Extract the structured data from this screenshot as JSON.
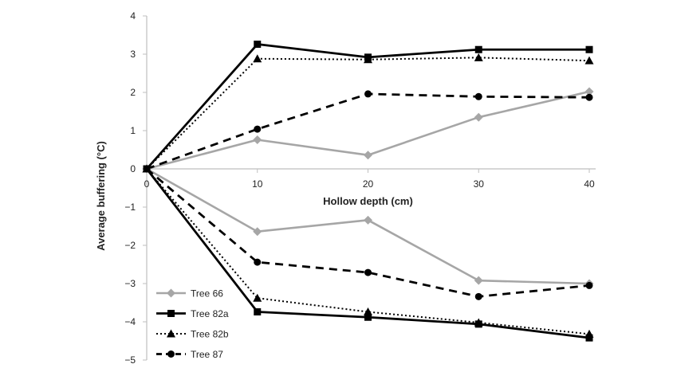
{
  "chart_data": {
    "type": "line",
    "title": "",
    "xlabel": "Hollow depth (cm)",
    "ylabel": "Average buffering (°C)",
    "x": [
      0,
      10,
      20,
      30,
      40
    ],
    "x_tick_labels": [
      "0",
      "10",
      "20",
      "30",
      "40"
    ],
    "ylim": [
      -5,
      4
    ],
    "y_ticks": [
      4,
      3,
      2,
      1,
      0,
      -1,
      -2,
      -3,
      -4,
      -5
    ],
    "y_tick_labels": [
      "4",
      "3",
      "2",
      "1",
      "0",
      "−1",
      "−2",
      "−3",
      "−4",
      "−5"
    ],
    "grid": false,
    "legend_position": "bottom-left",
    "series": [
      {
        "name": "Tree 66",
        "style": "solid",
        "marker": "diamond",
        "color": "#a6a6a6",
        "values": [
          0,
          0.76,
          0.36,
          1.35,
          2.02
        ]
      },
      {
        "name": "Tree 82a",
        "style": "solid",
        "marker": "square",
        "color": "#000000",
        "values": [
          0,
          3.26,
          2.92,
          3.12,
          3.12
        ]
      },
      {
        "name": "Tree 82b",
        "style": "dotted",
        "marker": "triangle",
        "color": "#000000",
        "values": [
          0,
          2.88,
          2.86,
          2.91,
          2.83
        ]
      },
      {
        "name": "Tree 87",
        "style": "dashed",
        "marker": "circle",
        "color": "#000000",
        "values": [
          0,
          1.04,
          1.96,
          1.89,
          1.87
        ]
      },
      {
        "name": "Tree 66",
        "style": "solid",
        "marker": "diamond",
        "color": "#a6a6a6",
        "values": [
          0,
          -1.64,
          -1.34,
          -2.92,
          -3.0
        ]
      },
      {
        "name": "Tree 82a",
        "style": "solid",
        "marker": "square",
        "color": "#000000",
        "values": [
          0,
          -3.74,
          -3.88,
          -4.06,
          -4.42
        ]
      },
      {
        "name": "Tree 82b",
        "style": "dotted",
        "marker": "triangle",
        "color": "#000000",
        "values": [
          0,
          -3.38,
          -3.74,
          -4.02,
          -4.32
        ]
      },
      {
        "name": "Tree 87",
        "style": "dashed",
        "marker": "circle",
        "color": "#000000",
        "values": [
          0,
          -2.44,
          -2.71,
          -3.34,
          -3.05
        ]
      }
    ],
    "legend": [
      {
        "label": "Tree 66",
        "style": "solid",
        "marker": "diamond",
        "color": "#a6a6a6"
      },
      {
        "label": "Tree 82a",
        "style": "solid",
        "marker": "square",
        "color": "#000000"
      },
      {
        "label": "Tree 82b",
        "style": "dotted",
        "marker": "triangle",
        "color": "#000000"
      },
      {
        "label": "Tree 87",
        "style": "dashed",
        "marker": "circle",
        "color": "#000000"
      }
    ]
  }
}
